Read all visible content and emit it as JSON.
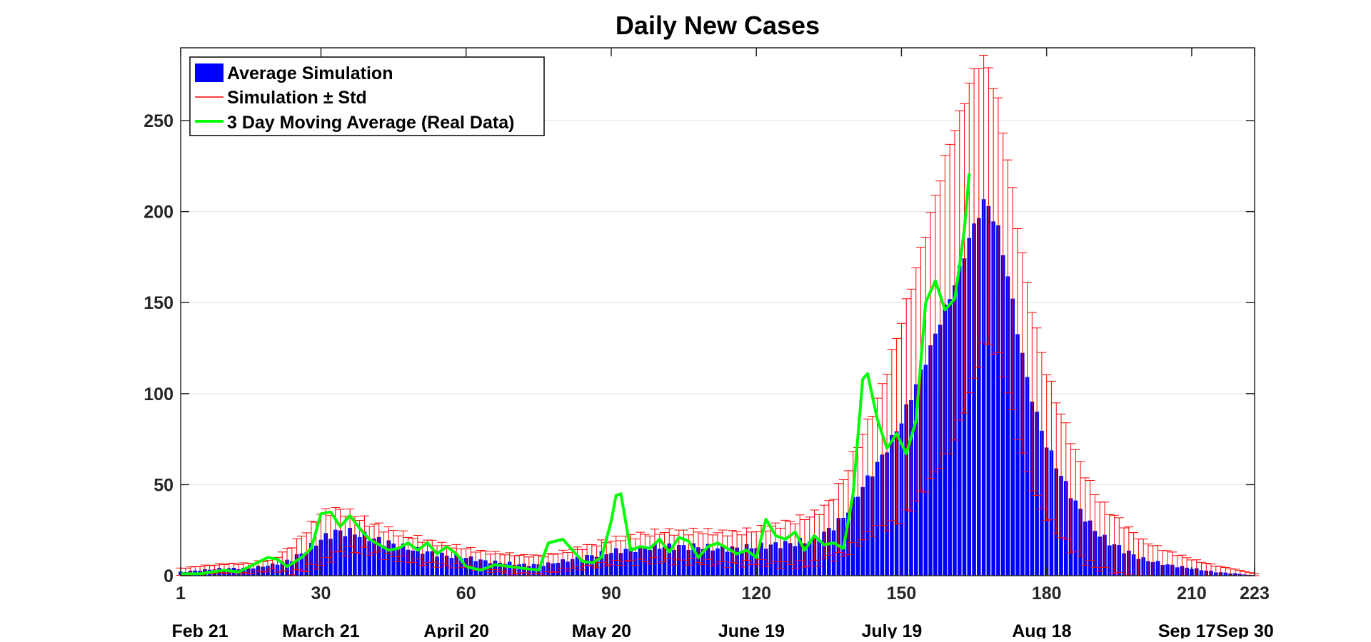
{
  "chart_data": {
    "type": "bar",
    "title": "Daily New Cases",
    "xlabel": "",
    "ylabel": "",
    "xlim": [
      1,
      223
    ],
    "ylim": [
      0,
      290
    ],
    "x_ticks": [
      1,
      30,
      60,
      90,
      120,
      150,
      180,
      210,
      223
    ],
    "y_ticks": [
      0,
      50,
      100,
      150,
      200,
      250
    ],
    "date_labels": [
      {
        "x": 5,
        "label": "Feb 21"
      },
      {
        "x": 30,
        "label": "March 21"
      },
      {
        "x": 58,
        "label": "April 20"
      },
      {
        "x": 88,
        "label": "May 20"
      },
      {
        "x": 119,
        "label": "June 19"
      },
      {
        "x": 148,
        "label": "July 19"
      },
      {
        "x": 179,
        "label": "Aug 18"
      },
      {
        "x": 209,
        "label": "Sep 17"
      },
      {
        "x": 221,
        "label": "Sep 30"
      }
    ],
    "grid": "horizontal",
    "legend_position": "top-left",
    "legend": [
      {
        "label": "Average Simulation",
        "kind": "patch",
        "color": "#0000ff"
      },
      {
        "label": "Simulation ± Std",
        "kind": "line",
        "color": "#ff0000"
      },
      {
        "label": "3 Day Moving Average (Real Data)",
        "kind": "line",
        "color": "#00ff00"
      }
    ],
    "colors": {
      "bars": "#0000ff",
      "error_bars": "#ff0000",
      "moving_average": "#00ff00"
    },
    "sim_mean_anchors": [
      [
        1,
        2
      ],
      [
        5,
        3
      ],
      [
        10,
        4
      ],
      [
        15,
        4
      ],
      [
        20,
        6
      ],
      [
        24,
        9
      ],
      [
        27,
        14
      ],
      [
        30,
        20
      ],
      [
        33,
        24
      ],
      [
        36,
        24
      ],
      [
        40,
        21
      ],
      [
        44,
        18
      ],
      [
        48,
        15
      ],
      [
        52,
        13
      ],
      [
        56,
        11
      ],
      [
        60,
        10
      ],
      [
        64,
        8
      ],
      [
        68,
        7
      ],
      [
        72,
        6
      ],
      [
        76,
        6
      ],
      [
        80,
        8
      ],
      [
        84,
        10
      ],
      [
        88,
        12
      ],
      [
        92,
        14
      ],
      [
        96,
        15
      ],
      [
        100,
        16
      ],
      [
        104,
        16
      ],
      [
        108,
        16
      ],
      [
        112,
        15
      ],
      [
        116,
        15
      ],
      [
        120,
        16
      ],
      [
        124,
        17
      ],
      [
        128,
        18
      ],
      [
        132,
        20
      ],
      [
        135,
        25
      ],
      [
        138,
        32
      ],
      [
        141,
        45
      ],
      [
        144,
        57
      ],
      [
        147,
        70
      ],
      [
        150,
        85
      ],
      [
        153,
        105
      ],
      [
        156,
        125
      ],
      [
        158,
        140
      ],
      [
        160,
        153
      ],
      [
        162,
        168
      ],
      [
        164,
        185
      ],
      [
        166,
        199
      ],
      [
        167,
        205
      ],
      [
        168,
        203
      ],
      [
        170,
        190
      ],
      [
        172,
        165
      ],
      [
        174,
        135
      ],
      [
        176,
        108
      ],
      [
        178,
        88
      ],
      [
        180,
        72
      ],
      [
        183,
        55
      ],
      [
        186,
        40
      ],
      [
        189,
        28
      ],
      [
        192,
        20
      ],
      [
        196,
        14
      ],
      [
        200,
        9
      ],
      [
        205,
        6
      ],
      [
        210,
        4
      ],
      [
        215,
        2
      ],
      [
        220,
        1
      ],
      [
        223,
        0
      ]
    ],
    "sim_std_anchors": [
      [
        1,
        2
      ],
      [
        20,
        3
      ],
      [
        30,
        14
      ],
      [
        40,
        8
      ],
      [
        60,
        5
      ],
      [
        80,
        5
      ],
      [
        100,
        8
      ],
      [
        120,
        9
      ],
      [
        135,
        15
      ],
      [
        140,
        25
      ],
      [
        145,
        35
      ],
      [
        150,
        55
      ],
      [
        155,
        70
      ],
      [
        160,
        85
      ],
      [
        165,
        85
      ],
      [
        170,
        70
      ],
      [
        175,
        55
      ],
      [
        180,
        40
      ],
      [
        190,
        20
      ],
      [
        200,
        10
      ],
      [
        210,
        5
      ],
      [
        223,
        1
      ]
    ],
    "moving_average_anchors": [
      [
        1,
        1
      ],
      [
        5,
        1
      ],
      [
        10,
        3
      ],
      [
        13,
        2
      ],
      [
        16,
        6
      ],
      [
        19,
        10
      ],
      [
        21,
        9
      ],
      [
        23,
        5
      ],
      [
        26,
        10
      ],
      [
        28,
        15
      ],
      [
        30,
        34
      ],
      [
        32,
        35
      ],
      [
        34,
        27
      ],
      [
        36,
        33
      ],
      [
        38,
        26
      ],
      [
        40,
        20
      ],
      [
        42,
        17
      ],
      [
        44,
        14
      ],
      [
        46,
        15
      ],
      [
        48,
        18
      ],
      [
        50,
        14
      ],
      [
        52,
        18
      ],
      [
        54,
        12
      ],
      [
        56,
        16
      ],
      [
        58,
        12
      ],
      [
        60,
        5
      ],
      [
        63,
        3
      ],
      [
        66,
        6
      ],
      [
        69,
        5
      ],
      [
        72,
        4
      ],
      [
        75,
        3
      ],
      [
        77,
        18
      ],
      [
        80,
        20
      ],
      [
        82,
        14
      ],
      [
        84,
        8
      ],
      [
        86,
        7
      ],
      [
        88,
        10
      ],
      [
        90,
        30
      ],
      [
        91,
        44
      ],
      [
        92,
        45
      ],
      [
        94,
        14
      ],
      [
        96,
        16
      ],
      [
        98,
        15
      ],
      [
        100,
        20
      ],
      [
        102,
        13
      ],
      [
        104,
        21
      ],
      [
        106,
        19
      ],
      [
        108,
        10
      ],
      [
        110,
        16
      ],
      [
        112,
        18
      ],
      [
        114,
        15
      ],
      [
        116,
        12
      ],
      [
        118,
        14
      ],
      [
        120,
        10
      ],
      [
        122,
        31
      ],
      [
        124,
        22
      ],
      [
        126,
        20
      ],
      [
        128,
        24
      ],
      [
        130,
        14
      ],
      [
        132,
        22
      ],
      [
        134,
        17
      ],
      [
        136,
        18
      ],
      [
        138,
        15
      ],
      [
        140,
        45
      ],
      [
        142,
        108
      ],
      [
        143,
        111
      ],
      [
        145,
        86
      ],
      [
        147,
        70
      ],
      [
        149,
        78
      ],
      [
        151,
        67
      ],
      [
        153,
        85
      ],
      [
        155,
        150
      ],
      [
        157,
        162
      ],
      [
        159,
        146
      ],
      [
        161,
        152
      ],
      [
        162,
        170
      ],
      [
        163,
        190
      ],
      [
        164,
        221
      ]
    ]
  }
}
